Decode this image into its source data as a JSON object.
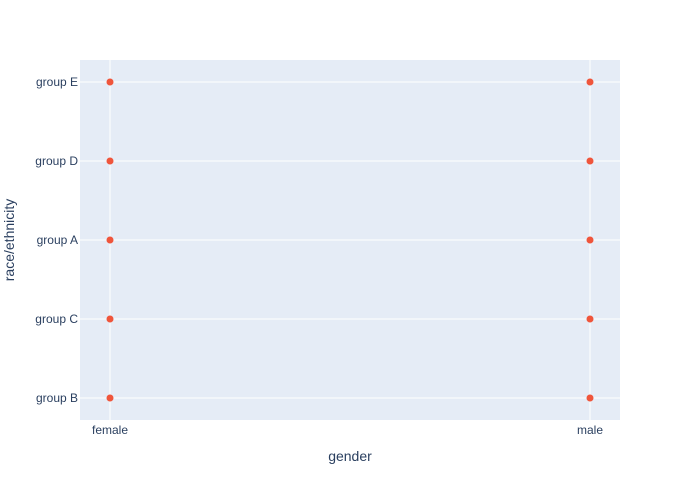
{
  "chart_data": {
    "type": "scatter",
    "xlabel": "gender",
    "ylabel": "race/ethnicity",
    "x_categories": [
      "female",
      "male"
    ],
    "y_categories": [
      "group B",
      "group C",
      "group A",
      "group D",
      "group E"
    ],
    "points": [
      {
        "x": "female",
        "y": "group B"
      },
      {
        "x": "female",
        "y": "group C"
      },
      {
        "x": "female",
        "y": "group A"
      },
      {
        "x": "female",
        "y": "group D"
      },
      {
        "x": "female",
        "y": "group E"
      },
      {
        "x": "male",
        "y": "group B"
      },
      {
        "x": "male",
        "y": "group C"
      },
      {
        "x": "male",
        "y": "group A"
      },
      {
        "x": "male",
        "y": "group D"
      },
      {
        "x": "male",
        "y": "group E"
      }
    ],
    "grid": true,
    "legend": "none",
    "colors": {
      "marker": "#EF553B",
      "plot_background": "#E5ECF6",
      "gridline": "#ffffff",
      "text": "#2a3f5f"
    }
  }
}
